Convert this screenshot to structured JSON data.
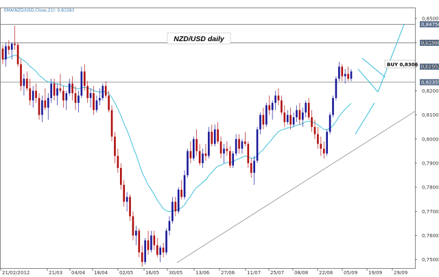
{
  "chart_data": {
    "type": "candlestick",
    "title": "NZD/USD daily",
    "indicator_label": "EMA(NZD/USD,Close,21): 0,81583",
    "annotation": "BUY 0,8306",
    "ylim": [
      0.7465,
      0.8545
    ],
    "y_ticks": [
      "0,8500",
      "0,8400",
      "0,8300",
      "0,8200",
      "0,8100",
      "0,8000",
      "0,7900",
      "0,7800",
      "0,7700",
      "0,7600",
      "0,7500"
    ],
    "x_ticks": [
      "21/02/2012",
      "21/03",
      "04/04",
      "18/04",
      "02/05",
      "16/05",
      "30/05",
      "13/06",
      "27/06",
      "11/07",
      "25/07",
      "08/08",
      "22/08",
      "05/09",
      "19/09",
      "29/09"
    ],
    "horizontal_levels": [
      {
        "value": 0.84756,
        "label": "0,84756"
      },
      {
        "value": 0.83988,
        "label": "0,83988"
      },
      {
        "value": 0.82355,
        "label": "0,82355"
      }
    ],
    "marker_labels": [
      {
        "value": 0.83,
        "label": "0,82953"
      }
    ],
    "colors": {
      "up": "#1a1a99",
      "down": "#b01010",
      "ema": "#29b8d6",
      "level_label_bg": "#5a6f8c",
      "trendline": "#8a8a8a",
      "channel": "#29b8d6",
      "frame": "#666666"
    },
    "candles": [
      [
        0.8375,
        0.839,
        0.831,
        0.833
      ],
      [
        0.833,
        0.84,
        0.83,
        0.8385
      ],
      [
        0.8385,
        0.841,
        0.835,
        0.837
      ],
      [
        0.837,
        0.84,
        0.833,
        0.8395
      ],
      [
        0.8395,
        0.847,
        0.837,
        0.839
      ],
      [
        0.839,
        0.84,
        0.83,
        0.831
      ],
      [
        0.831,
        0.833,
        0.82,
        0.822
      ],
      [
        0.822,
        0.827,
        0.818,
        0.825
      ],
      [
        0.825,
        0.828,
        0.82,
        0.821
      ],
      [
        0.821,
        0.825,
        0.814,
        0.816
      ],
      [
        0.816,
        0.822,
        0.813,
        0.82
      ],
      [
        0.82,
        0.823,
        0.815,
        0.817
      ],
      [
        0.817,
        0.819,
        0.808,
        0.81
      ],
      [
        0.81,
        0.818,
        0.807,
        0.816
      ],
      [
        0.816,
        0.821,
        0.812,
        0.813
      ],
      [
        0.813,
        0.819,
        0.808,
        0.817
      ],
      [
        0.817,
        0.825,
        0.815,
        0.823
      ],
      [
        0.823,
        0.825,
        0.816,
        0.818
      ],
      [
        0.818,
        0.823,
        0.814,
        0.821
      ],
      [
        0.821,
        0.827,
        0.819,
        0.82
      ],
      [
        0.82,
        0.822,
        0.813,
        0.816
      ],
      [
        0.816,
        0.82,
        0.812,
        0.819
      ],
      [
        0.819,
        0.825,
        0.818,
        0.823
      ],
      [
        0.823,
        0.826,
        0.816,
        0.819
      ],
      [
        0.819,
        0.822,
        0.812,
        0.815
      ],
      [
        0.815,
        0.82,
        0.811,
        0.818
      ],
      [
        0.818,
        0.83,
        0.817,
        0.828
      ],
      [
        0.828,
        0.831,
        0.82,
        0.822
      ],
      [
        0.822,
        0.824,
        0.815,
        0.817
      ],
      [
        0.817,
        0.821,
        0.813,
        0.819
      ],
      [
        0.819,
        0.822,
        0.81,
        0.812
      ],
      [
        0.812,
        0.818,
        0.811,
        0.816
      ],
      [
        0.816,
        0.821,
        0.814,
        0.817
      ],
      [
        0.817,
        0.823,
        0.816,
        0.822
      ],
      [
        0.822,
        0.824,
        0.817,
        0.818
      ],
      [
        0.818,
        0.82,
        0.811,
        0.812
      ],
      [
        0.812,
        0.814,
        0.799,
        0.801
      ],
      [
        0.801,
        0.803,
        0.79,
        0.793
      ],
      [
        0.793,
        0.796,
        0.786,
        0.788
      ],
      [
        0.788,
        0.79,
        0.779,
        0.781
      ],
      [
        0.781,
        0.783,
        0.772,
        0.774
      ],
      [
        0.774,
        0.778,
        0.77,
        0.776
      ],
      [
        0.776,
        0.777,
        0.766,
        0.768
      ],
      [
        0.768,
        0.77,
        0.758,
        0.76
      ],
      [
        0.76,
        0.764,
        0.756,
        0.762
      ],
      [
        0.762,
        0.763,
        0.751,
        0.753
      ],
      [
        0.753,
        0.756,
        0.747,
        0.749
      ],
      [
        0.749,
        0.759,
        0.748,
        0.758
      ],
      [
        0.758,
        0.762,
        0.752,
        0.754
      ],
      [
        0.754,
        0.762,
        0.753,
        0.76
      ],
      [
        0.76,
        0.762,
        0.754,
        0.756
      ],
      [
        0.756,
        0.759,
        0.751,
        0.752
      ],
      [
        0.752,
        0.756,
        0.749,
        0.755
      ],
      [
        0.755,
        0.757,
        0.751,
        0.753
      ],
      [
        0.753,
        0.763,
        0.752,
        0.762
      ],
      [
        0.762,
        0.768,
        0.76,
        0.766
      ],
      [
        0.766,
        0.776,
        0.765,
        0.774
      ],
      [
        0.774,
        0.776,
        0.768,
        0.77
      ],
      [
        0.77,
        0.78,
        0.769,
        0.779
      ],
      [
        0.779,
        0.783,
        0.775,
        0.776
      ],
      [
        0.776,
        0.787,
        0.775,
        0.785
      ],
      [
        0.785,
        0.796,
        0.784,
        0.795
      ],
      [
        0.795,
        0.799,
        0.79,
        0.792
      ],
      [
        0.792,
        0.801,
        0.791,
        0.8
      ],
      [
        0.8,
        0.804,
        0.793,
        0.795
      ],
      [
        0.795,
        0.798,
        0.789,
        0.79
      ],
      [
        0.79,
        0.796,
        0.788,
        0.794
      ],
      [
        0.794,
        0.798,
        0.791,
        0.793
      ],
      [
        0.793,
        0.805,
        0.792,
        0.803
      ],
      [
        0.803,
        0.806,
        0.797,
        0.798
      ],
      [
        0.798,
        0.806,
        0.797,
        0.804
      ],
      [
        0.804,
        0.807,
        0.798,
        0.799
      ],
      [
        0.799,
        0.801,
        0.792,
        0.794
      ],
      [
        0.794,
        0.798,
        0.79,
        0.796
      ],
      [
        0.796,
        0.799,
        0.793,
        0.795
      ],
      [
        0.795,
        0.797,
        0.788,
        0.789
      ],
      [
        0.789,
        0.795,
        0.788,
        0.794
      ],
      [
        0.794,
        0.802,
        0.793,
        0.8
      ],
      [
        0.8,
        0.802,
        0.794,
        0.796
      ],
      [
        0.796,
        0.8,
        0.794,
        0.799
      ],
      [
        0.799,
        0.803,
        0.797,
        0.798
      ],
      [
        0.798,
        0.799,
        0.788,
        0.79
      ],
      [
        0.79,
        0.792,
        0.784,
        0.786
      ],
      [
        0.786,
        0.793,
        0.781,
        0.791
      ],
      [
        0.791,
        0.805,
        0.79,
        0.804
      ],
      [
        0.804,
        0.811,
        0.802,
        0.81
      ],
      [
        0.81,
        0.813,
        0.804,
        0.806
      ],
      [
        0.806,
        0.815,
        0.805,
        0.814
      ],
      [
        0.814,
        0.818,
        0.81,
        0.812
      ],
      [
        0.812,
        0.816,
        0.808,
        0.815
      ],
      [
        0.815,
        0.82,
        0.812,
        0.818
      ],
      [
        0.818,
        0.821,
        0.814,
        0.816
      ],
      [
        0.816,
        0.818,
        0.81,
        0.811
      ],
      [
        0.811,
        0.814,
        0.805,
        0.807
      ],
      [
        0.807,
        0.812,
        0.806,
        0.81
      ],
      [
        0.81,
        0.813,
        0.804,
        0.806
      ],
      [
        0.806,
        0.811,
        0.805,
        0.809
      ],
      [
        0.809,
        0.814,
        0.807,
        0.812
      ],
      [
        0.812,
        0.815,
        0.806,
        0.808
      ],
      [
        0.808,
        0.813,
        0.805,
        0.811
      ],
      [
        0.811,
        0.816,
        0.809,
        0.815
      ],
      [
        0.815,
        0.817,
        0.808,
        0.809
      ],
      [
        0.809,
        0.812,
        0.803,
        0.805
      ],
      [
        0.805,
        0.808,
        0.8,
        0.802
      ],
      [
        0.802,
        0.805,
        0.796,
        0.798
      ],
      [
        0.798,
        0.801,
        0.793,
        0.796
      ],
      [
        0.796,
        0.799,
        0.792,
        0.794
      ],
      [
        0.794,
        0.804,
        0.793,
        0.803
      ],
      [
        0.803,
        0.811,
        0.802,
        0.81
      ],
      [
        0.81,
        0.818,
        0.809,
        0.817
      ],
      [
        0.817,
        0.826,
        0.816,
        0.825
      ],
      [
        0.825,
        0.832,
        0.824,
        0.83
      ],
      [
        0.83,
        0.831,
        0.824,
        0.826
      ],
      [
        0.826,
        0.829,
        0.823,
        0.827
      ],
      [
        0.827,
        0.83,
        0.824,
        0.825
      ],
      [
        0.825,
        0.829,
        0.824,
        0.828
      ]
    ]
  }
}
